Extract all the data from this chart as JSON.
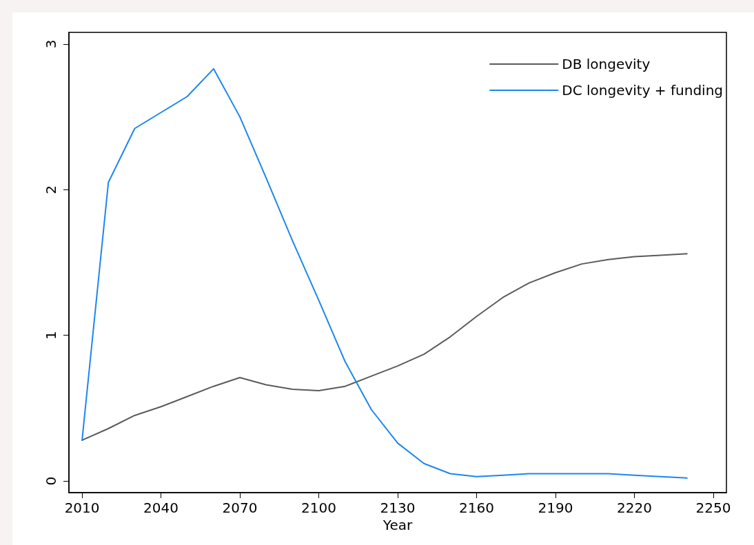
{
  "chart_data": {
    "type": "line",
    "xlabel": "Year",
    "x": [
      2010,
      2020,
      2030,
      2040,
      2050,
      2060,
      2070,
      2080,
      2090,
      2100,
      2110,
      2120,
      2130,
      2140,
      2150,
      2160,
      2170,
      2180,
      2190,
      2200,
      2210,
      2220,
      2230,
      2240
    ],
    "series": [
      {
        "name": "DB longevity",
        "color": "#5a5a5a",
        "values": [
          0.28,
          0.36,
          0.45,
          0.51,
          0.58,
          0.65,
          0.71,
          0.66,
          0.63,
          0.62,
          0.65,
          0.72,
          0.79,
          0.87,
          0.99,
          1.13,
          1.26,
          1.36,
          1.43,
          1.49,
          1.52,
          1.54,
          1.55,
          1.56
        ]
      },
      {
        "name": "DC longevity + funding",
        "color": "#1a86f0",
        "values": [
          0.28,
          2.05,
          2.42,
          2.53,
          2.64,
          2.83,
          2.5,
          2.08,
          1.65,
          1.24,
          0.82,
          0.49,
          0.26,
          0.12,
          0.05,
          0.03,
          0.04,
          0.05,
          0.05,
          0.05,
          0.05,
          0.04,
          0.03,
          0.02
        ]
      }
    ],
    "xlim": [
      2005,
      2255
    ],
    "xticks": [
      2010,
      2040,
      2070,
      2100,
      2130,
      2160,
      2190,
      2220,
      2250
    ],
    "ylim": [
      -0.08,
      3.08
    ],
    "yticks": [
      0,
      1,
      2,
      3
    ],
    "legend": "top right",
    "marker": "none",
    "line_style": "solid",
    "grid": false
  }
}
